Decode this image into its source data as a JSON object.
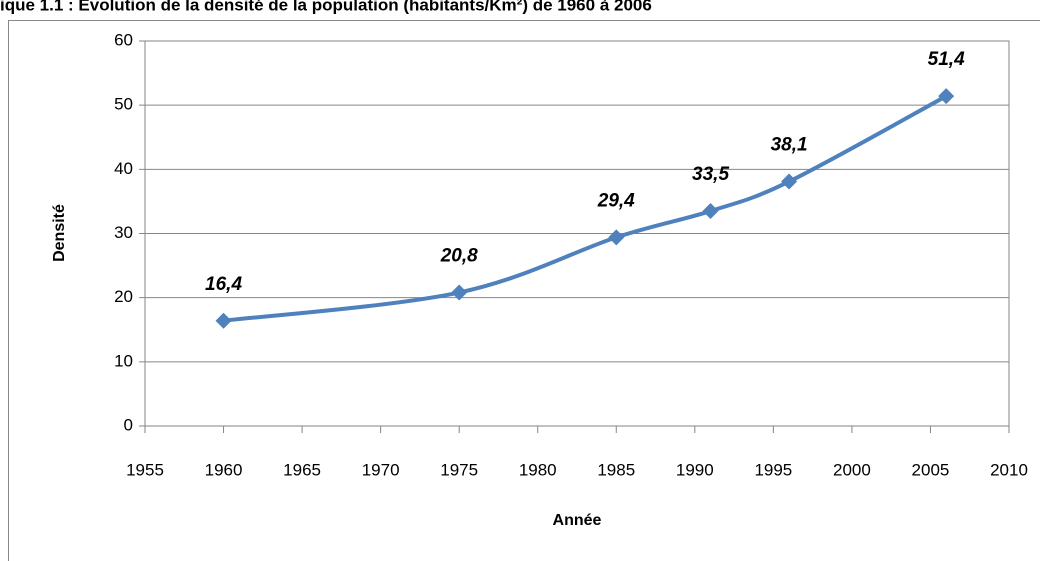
{
  "chart_data": {
    "type": "line",
    "title": "ique 1.1 : Evolution de la densité de la population (habitants/Km²) de 1960 à 2006",
    "x_label": "Année",
    "y_label": "Densité",
    "x": [
      1960,
      1975,
      1985,
      1991,
      1996,
      2006
    ],
    "series": [
      {
        "name": "Densité",
        "color": "#4f81bd",
        "values": [
          16.4,
          20.8,
          29.4,
          33.5,
          38.1,
          51.4
        ],
        "value_labels": [
          "16,4",
          "20,8",
          "29,4",
          "33,5",
          "38,1",
          "51,4"
        ]
      }
    ],
    "xlim": [
      1955,
      2010
    ],
    "xticks": [
      1955,
      1960,
      1965,
      1970,
      1975,
      1980,
      1985,
      1990,
      1995,
      2000,
      2005,
      2010
    ],
    "ylim": [
      0,
      60
    ],
    "yticks": [
      0,
      10,
      20,
      30,
      40,
      50,
      60
    ],
    "grid": true,
    "smooth": true
  }
}
